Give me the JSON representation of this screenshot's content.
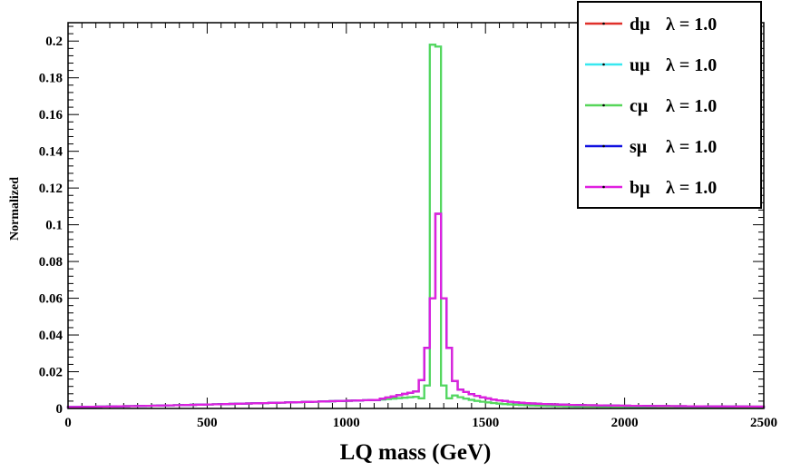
{
  "chart_data": {
    "type": "line",
    "style": "step-histogram",
    "title": "",
    "xlabel": "LQ mass (GeV)",
    "ylabel": "Normalized",
    "xlim": [
      0,
      2500
    ],
    "ylim": [
      0,
      0.21
    ],
    "x_ticks": [
      0,
      500,
      1000,
      1500,
      2000,
      2500
    ],
    "x_tick_labels": [
      "0",
      "500",
      "1000",
      "1500",
      "2000",
      "2500"
    ],
    "y_ticks": [
      0,
      0.02,
      0.04,
      0.06,
      0.08,
      0.1,
      0.12,
      0.14,
      0.16,
      0.18,
      0.2
    ],
    "y_tick_labels": [
      "0",
      "0.02",
      "0.04",
      "0.06",
      "0.08",
      "0.1",
      "0.12",
      "0.14",
      "0.16",
      "0.18",
      "0.2"
    ],
    "bin_width": 20,
    "legend": {
      "placement": "top-right",
      "entries": [
        {
          "quark": "dμ",
          "coupling": "λ = 1.0",
          "color": "#e0302a"
        },
        {
          "quark": "uμ",
          "coupling": "λ = 1.0",
          "color": "#38e8f0"
        },
        {
          "quark": "cμ",
          "coupling": "λ = 1.0",
          "color": "#57d65a"
        },
        {
          "quark": "sμ",
          "coupling": "λ = 1.0",
          "color": "#1010e0"
        },
        {
          "quark": "bμ",
          "coupling": "λ = 1.0",
          "color": "#e020e0"
        }
      ]
    },
    "series": [
      {
        "name": "dμ λ = 1.0",
        "color": "#e0302a",
        "shape": "broad",
        "peak_bins": [
          {
            "x": 1260,
            "y": 0.0155
          },
          {
            "x": 1280,
            "y": 0.033
          },
          {
            "x": 1300,
            "y": 0.06
          },
          {
            "x": 1320,
            "y": 0.106
          },
          {
            "x": 1340,
            "y": 0.06
          },
          {
            "x": 1360,
            "y": 0.033
          },
          {
            "x": 1380,
            "y": 0.015
          }
        ]
      },
      {
        "name": "uμ λ = 1.0",
        "color": "#38e8f0",
        "shape": "narrow",
        "peak_bins": [
          {
            "x": 1260,
            "y": 0.0055
          },
          {
            "x": 1280,
            "y": 0.0125
          },
          {
            "x": 1300,
            "y": 0.198
          },
          {
            "x": 1320,
            "y": 0.197
          },
          {
            "x": 1340,
            "y": 0.0125
          },
          {
            "x": 1360,
            "y": 0.0055
          }
        ]
      },
      {
        "name": "cμ λ = 1.0",
        "color": "#57d65a",
        "shape": "narrow",
        "peak_bins": [
          {
            "x": 1260,
            "y": 0.0055
          },
          {
            "x": 1280,
            "y": 0.0125
          },
          {
            "x": 1300,
            "y": 0.198
          },
          {
            "x": 1320,
            "y": 0.197
          },
          {
            "x": 1340,
            "y": 0.0125
          },
          {
            "x": 1360,
            "y": 0.0055
          }
        ]
      },
      {
        "name": "sμ λ = 1.0",
        "color": "#1010e0",
        "shape": "broad",
        "peak_bins": [
          {
            "x": 1260,
            "y": 0.0155
          },
          {
            "x": 1280,
            "y": 0.033
          },
          {
            "x": 1300,
            "y": 0.06
          },
          {
            "x": 1320,
            "y": 0.106
          },
          {
            "x": 1340,
            "y": 0.06
          },
          {
            "x": 1360,
            "y": 0.033
          },
          {
            "x": 1380,
            "y": 0.015
          }
        ]
      },
      {
        "name": "bμ λ = 1.0",
        "color": "#e020e0",
        "shape": "broad",
        "peak_bins": [
          {
            "x": 1260,
            "y": 0.0155
          },
          {
            "x": 1280,
            "y": 0.033
          },
          {
            "x": 1300,
            "y": 0.06
          },
          {
            "x": 1320,
            "y": 0.106
          },
          {
            "x": 1340,
            "y": 0.06
          },
          {
            "x": 1360,
            "y": 0.033
          },
          {
            "x": 1380,
            "y": 0.015
          }
        ]
      }
    ]
  }
}
